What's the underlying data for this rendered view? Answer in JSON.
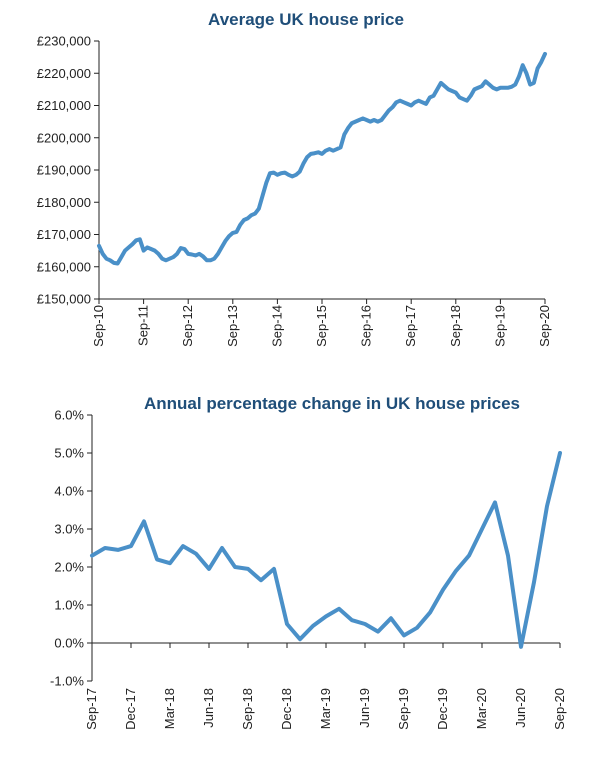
{
  "colors": {
    "series": "#4a90c8",
    "title": "#1f4e79",
    "axis": "#222222"
  },
  "chart_data": [
    {
      "type": "line",
      "title": "Average UK house price",
      "xlabel": "",
      "ylabel": "",
      "ylim": [
        150000,
        230000
      ],
      "yticks": [
        150000,
        160000,
        170000,
        180000,
        190000,
        200000,
        210000,
        220000,
        230000
      ],
      "ytick_labels": [
        "£150,000",
        "£160,000",
        "£170,000",
        "£180,000",
        "£190,000",
        "£200,000",
        "£210,000",
        "£220,000",
        "£230,000"
      ],
      "xtick_labels": [
        "Sep-10",
        "Sep-11",
        "Sep-12",
        "Sep-13",
        "Sep-14",
        "Sep-15",
        "Sep-16",
        "Sep-17",
        "Sep-18",
        "Sep-19",
        "Sep-20"
      ],
      "grid": false,
      "legend": "none",
      "series": [
        {
          "x": [
            0,
            1,
            2,
            3,
            4,
            5,
            6,
            7,
            8,
            9,
            10,
            11,
            12,
            13,
            14,
            15,
            16,
            17,
            18,
            19,
            20,
            21,
            22,
            23,
            24,
            25,
            26,
            27,
            28,
            29,
            30,
            31,
            32,
            33,
            34,
            35,
            36,
            37,
            38,
            39,
            40,
            41,
            42,
            43,
            44,
            45,
            46,
            47,
            48,
            49,
            50,
            51,
            52,
            53,
            54,
            55,
            56,
            57,
            58,
            59,
            60,
            61,
            62,
            63,
            64,
            65,
            66,
            67,
            68,
            69,
            70,
            71,
            72,
            73,
            74,
            75,
            76,
            77,
            78,
            79,
            80,
            81,
            82,
            83,
            84,
            85,
            86,
            87,
            88,
            89,
            90,
            91,
            92,
            93,
            94,
            95,
            96,
            97,
            98,
            99,
            100,
            101,
            102,
            103,
            104,
            105,
            106,
            107,
            108,
            109,
            110,
            111,
            112,
            113,
            114,
            115,
            116,
            117,
            118,
            119,
            120
          ],
          "values": [
            166500,
            164000,
            162500,
            162000,
            161200,
            161000,
            163000,
            165000,
            166000,
            167000,
            168200,
            168500,
            165000,
            166000,
            165500,
            165000,
            164000,
            162500,
            162000,
            162500,
            163000,
            164000,
            165800,
            165500,
            164000,
            163800,
            163500,
            164000,
            163200,
            162000,
            162000,
            162500,
            164000,
            166000,
            168000,
            169500,
            170500,
            170800,
            173000,
            174500,
            175000,
            176000,
            176500,
            178000,
            182000,
            186000,
            189000,
            189200,
            188500,
            189000,
            189200,
            188500,
            188000,
            188500,
            189500,
            192000,
            194000,
            195000,
            195200,
            195500,
            195000,
            196000,
            196500,
            196000,
            196500,
            197000,
            201000,
            203000,
            204500,
            205000,
            205500,
            206000,
            205500,
            205000,
            205500,
            205000,
            205500,
            207000,
            208500,
            209500,
            211000,
            211500,
            211000,
            210500,
            210000,
            211000,
            211500,
            211000,
            210500,
            212500,
            213000,
            215000,
            217000,
            216000,
            215000,
            214500,
            214000,
            212500,
            212000,
            211500,
            213000,
            215000,
            215500,
            216000,
            217500,
            216500,
            215500,
            215000,
            215500,
            215500,
            215500,
            215800,
            216500,
            219000,
            222500,
            220000,
            216500,
            217000,
            221500,
            223500,
            226000
          ]
        }
      ]
    },
    {
      "type": "line",
      "title": "Annual percentage change in UK house prices",
      "xlabel": "",
      "ylabel": "",
      "ylim": [
        -1.0,
        6.0
      ],
      "yticks": [
        -1,
        0,
        1,
        2,
        3,
        4,
        5,
        6
      ],
      "ytick_labels": [
        "-1.0%",
        "0.0%",
        "1.0%",
        "2.0%",
        "3.0%",
        "4.0%",
        "5.0%",
        "6.0%"
      ],
      "xtick_labels": [
        "Sep-17",
        "Dec-17",
        "Mar-18",
        "Jun-18",
        "Sep-18",
        "Dec-18",
        "Mar-19",
        "Jun-19",
        "Sep-19",
        "Dec-19",
        "Mar-20",
        "Jun-20",
        "Sep-20"
      ],
      "grid": false,
      "legend": "none",
      "series": [
        {
          "x": [
            0,
            1,
            2,
            3,
            4,
            5,
            6,
            7,
            8,
            9,
            10,
            11,
            12,
            13,
            14,
            15,
            16,
            17,
            18,
            19,
            20,
            21,
            22,
            23,
            24,
            25,
            26,
            27,
            28,
            29,
            30,
            31,
            32,
            33,
            34,
            35,
            36
          ],
          "values": [
            2.3,
            2.5,
            2.45,
            2.55,
            3.2,
            2.2,
            2.1,
            2.55,
            2.35,
            1.95,
            2.5,
            2.0,
            1.95,
            1.65,
            1.95,
            0.5,
            0.1,
            0.45,
            0.7,
            0.9,
            0.6,
            0.5,
            0.3,
            0.65,
            0.2,
            0.4,
            0.8,
            1.4,
            1.9,
            2.3,
            3.0,
            3.7,
            2.3,
            -0.1,
            1.6,
            3.6,
            5.0
          ]
        }
      ]
    }
  ]
}
